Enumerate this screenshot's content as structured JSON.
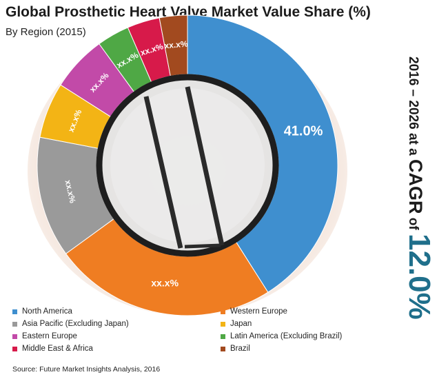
{
  "header": {
    "title": "Global Prosthetic Heart Valve Market Value Share (%)",
    "subtitle": "By Region (2015)"
  },
  "side": {
    "lead": "2016 – 2026 at a",
    "cagr_word": "CAGR",
    "of_word": "of",
    "value": "12.0%"
  },
  "source": "Source: Future Market Insights Analysis, 2016",
  "colors": {
    "north_america": "#3f8fcf",
    "western_europe": "#ef7d22",
    "asia_pacific": "#9a9a9a",
    "japan": "#f3b415",
    "eastern_europe": "#c24aa8",
    "latin_america": "#4fa845",
    "middle_east": "#d71a4a",
    "brazil": "#a24a1f",
    "cagr_value": "#1f6f8b"
  },
  "chart_data": {
    "type": "pie",
    "style": "donut",
    "title": "Global Prosthetic Heart Valve Market Value Share (%)",
    "subtitle": "By Region (2015)",
    "legend_placement": "bottom",
    "slices": [
      {
        "name": "North America",
        "value": 41.0,
        "label": "41.0%",
        "color": "#3f8fcf"
      },
      {
        "name": "Western Europe",
        "value": 24.0,
        "label": "xx.x%",
        "color": "#ef7d22"
      },
      {
        "name": "Asia Pacific (Excluding Japan)",
        "value": 13.0,
        "label": "xx.x%",
        "color": "#9a9a9a"
      },
      {
        "name": "Japan",
        "value": 6.0,
        "label": "xx.x%",
        "color": "#f3b415"
      },
      {
        "name": "Eastern Europe",
        "value": 6.0,
        "label": "xx.x%",
        "color": "#c24aa8"
      },
      {
        "name": "Latin America (Excluding Brazil)",
        "value": 3.5,
        "label": "xx.x%",
        "color": "#4fa845"
      },
      {
        "name": "Middle East & Africa",
        "value": 3.5,
        "label": "xx.x%",
        "color": "#d71a4a"
      },
      {
        "name": "Brazil",
        "value": 3.0,
        "label": "xx.x%",
        "color": "#a24a1f"
      }
    ]
  }
}
